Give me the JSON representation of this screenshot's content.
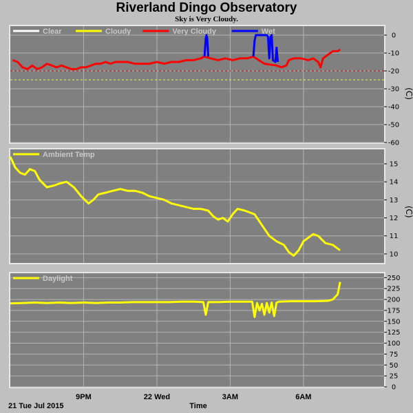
{
  "title": "Riverland Dingo Observatory",
  "subtitle": "Sky is Very Cloudy.",
  "x_axis": {
    "label": "Time",
    "start_label": "21 Tue Jul 2015",
    "range_hours": [
      18.0,
      33.3
    ],
    "ticks": [
      {
        "t": 21,
        "label": "9PM"
      },
      {
        "t": 24,
        "label": "22 Wed"
      },
      {
        "t": 27,
        "label": "3AM"
      },
      {
        "t": 30,
        "label": "6AM"
      }
    ]
  },
  "colors": {
    "plot_bg": "#808080",
    "grid": "#b4b4b4",
    "clear": "#ffffff",
    "cloudy": "#ffff00",
    "very_cloudy": "#ff0000",
    "wet": "#0000ff",
    "ambient": "#ffff00",
    "daylight": "#ffff00"
  },
  "chart_data": [
    {
      "type": "line",
      "ylabel": "(C)",
      "ylim": [
        -60,
        5
      ],
      "yticks": [
        0,
        -10,
        -20,
        -30,
        -40,
        -50,
        -60
      ],
      "legend": [
        "Clear",
        "Cloudy",
        "Very Cloudy",
        "Wet"
      ],
      "thresholds": [
        {
          "name": "Very Cloudy",
          "value": -20
        },
        {
          "name": "Cloudy",
          "value": -25
        }
      ],
      "series": [
        {
          "name": "Very Cloudy",
          "points": [
            [
              18.1,
              -14
            ],
            [
              18.3,
              -15
            ],
            [
              18.5,
              -18
            ],
            [
              18.7,
              -19
            ],
            [
              18.9,
              -17
            ],
            [
              19.1,
              -19
            ],
            [
              19.3,
              -18
            ],
            [
              19.5,
              -16
            ],
            [
              19.7,
              -17
            ],
            [
              19.9,
              -18
            ],
            [
              20.1,
              -17
            ],
            [
              20.3,
              -18
            ],
            [
              20.5,
              -19
            ],
            [
              20.7,
              -19
            ],
            [
              20.9,
              -18
            ],
            [
              21.1,
              -18
            ],
            [
              21.3,
              -17
            ],
            [
              21.5,
              -16
            ],
            [
              21.7,
              -16
            ],
            [
              21.9,
              -15
            ],
            [
              22.1,
              -16
            ],
            [
              22.3,
              -15
            ],
            [
              22.5,
              -15
            ],
            [
              22.8,
              -15
            ],
            [
              23.1,
              -16
            ],
            [
              23.4,
              -16
            ],
            [
              23.7,
              -16
            ],
            [
              24.0,
              -15
            ],
            [
              24.3,
              -16
            ],
            [
              24.6,
              -15
            ],
            [
              24.9,
              -15
            ],
            [
              25.2,
              -14
            ],
            [
              25.5,
              -14
            ],
            [
              25.8,
              -13
            ],
            [
              25.93,
              -12
            ],
            [
              26.2,
              -13
            ],
            [
              26.5,
              -14
            ],
            [
              26.8,
              -13
            ],
            [
              27.1,
              -14
            ],
            [
              27.4,
              -13
            ],
            [
              27.7,
              -13
            ],
            [
              27.95,
              -12
            ],
            [
              28.4,
              -16
            ],
            [
              28.9,
              -17
            ],
            [
              29.1,
              -18
            ],
            [
              29.3,
              -17
            ],
            [
              29.4,
              -14
            ],
            [
              29.6,
              -13
            ],
            [
              29.9,
              -13
            ],
            [
              30.2,
              -14
            ],
            [
              30.4,
              -13
            ],
            [
              30.6,
              -15
            ],
            [
              30.7,
              -18
            ],
            [
              30.8,
              -13
            ],
            [
              31.0,
              -11
            ],
            [
              31.2,
              -9
            ],
            [
              31.4,
              -9
            ],
            [
              31.5,
              -8
            ]
          ]
        },
        {
          "name": "Wet",
          "segments": [
            [
              [
                25.95,
                -12
              ],
              [
                26.0,
                -2
              ],
              [
                26.03,
                0
              ],
              [
                26.06,
                -2
              ],
              [
                26.1,
                -12
              ]
            ],
            [
              [
                27.95,
                -12
              ],
              [
                28.0,
                -3
              ],
              [
                28.05,
                0
              ],
              [
                28.45,
                0
              ],
              [
                28.5,
                0
              ],
              [
                28.55,
                -1
              ],
              [
                28.6,
                -13
              ],
              [
                28.65,
                -1
              ],
              [
                28.7,
                0
              ],
              [
                28.75,
                -14
              ],
              [
                28.85,
                -15
              ],
              [
                28.9,
                -7
              ],
              [
                28.95,
                -15
              ]
            ]
          ]
        }
      ]
    },
    {
      "type": "line",
      "ylabel": "(C)",
      "ylim": [
        9.5,
        15.8
      ],
      "yticks": [
        10,
        11,
        12,
        13,
        14,
        15
      ],
      "legend": [
        "Ambient Temp"
      ],
      "series": [
        {
          "name": "Ambient Temp",
          "points": [
            [
              18.0,
              15.4
            ],
            [
              18.2,
              14.8
            ],
            [
              18.4,
              14.5
            ],
            [
              18.6,
              14.4
            ],
            [
              18.8,
              14.7
            ],
            [
              19.0,
              14.6
            ],
            [
              19.2,
              14.1
            ],
            [
              19.5,
              13.7
            ],
            [
              19.8,
              13.8
            ],
            [
              20.0,
              13.9
            ],
            [
              20.3,
              14.0
            ],
            [
              20.6,
              13.7
            ],
            [
              20.9,
              13.2
            ],
            [
              21.2,
              12.8
            ],
            [
              21.4,
              13.0
            ],
            [
              21.6,
              13.3
            ],
            [
              21.9,
              13.4
            ],
            [
              22.2,
              13.5
            ],
            [
              22.5,
              13.6
            ],
            [
              22.8,
              13.5
            ],
            [
              23.1,
              13.5
            ],
            [
              23.4,
              13.4
            ],
            [
              23.7,
              13.2
            ],
            [
              24.0,
              13.1
            ],
            [
              24.3,
              13.0
            ],
            [
              24.6,
              12.8
            ],
            [
              24.9,
              12.7
            ],
            [
              25.2,
              12.6
            ],
            [
              25.5,
              12.5
            ],
            [
              25.8,
              12.5
            ],
            [
              26.1,
              12.4
            ],
            [
              26.3,
              12.1
            ],
            [
              26.5,
              11.9
            ],
            [
              26.7,
              12.0
            ],
            [
              26.9,
              11.8
            ],
            [
              27.1,
              12.2
            ],
            [
              27.3,
              12.5
            ],
            [
              27.6,
              12.4
            ],
            [
              28.0,
              12.2
            ],
            [
              28.3,
              11.6
            ],
            [
              28.6,
              11.0
            ],
            [
              28.9,
              10.7
            ],
            [
              29.2,
              10.5
            ],
            [
              29.4,
              10.1
            ],
            [
              29.6,
              9.9
            ],
            [
              29.8,
              10.2
            ],
            [
              30.0,
              10.7
            ],
            [
              30.2,
              10.9
            ],
            [
              30.4,
              11.1
            ],
            [
              30.6,
              11.0
            ],
            [
              30.9,
              10.6
            ],
            [
              31.2,
              10.5
            ],
            [
              31.5,
              10.2
            ]
          ]
        }
      ]
    },
    {
      "type": "line",
      "ylabel": "",
      "ylim": [
        0,
        260
      ],
      "yticks": [
        0,
        25,
        50,
        75,
        100,
        125,
        150,
        175,
        200,
        225,
        250
      ],
      "legend": [
        "Daylight"
      ],
      "series": [
        {
          "name": "Daylight",
          "points": [
            [
              18.0,
              191
            ],
            [
              18.5,
              192
            ],
            [
              19.0,
              193
            ],
            [
              19.5,
              192
            ],
            [
              20.0,
              193
            ],
            [
              20.5,
              192
            ],
            [
              21.0,
              193
            ],
            [
              21.5,
              192
            ],
            [
              22.0,
              193
            ],
            [
              22.5,
              193
            ],
            [
              23.0,
              194
            ],
            [
              23.5,
              194
            ],
            [
              24.0,
              194
            ],
            [
              24.5,
              194
            ],
            [
              25.0,
              195
            ],
            [
              25.5,
              195
            ],
            [
              25.9,
              194
            ],
            [
              26.0,
              165
            ],
            [
              26.1,
              194
            ],
            [
              26.5,
              194
            ],
            [
              27.0,
              195
            ],
            [
              27.5,
              195
            ],
            [
              27.9,
              195
            ],
            [
              28.0,
              160
            ],
            [
              28.1,
              192
            ],
            [
              28.2,
              175
            ],
            [
              28.3,
              190
            ],
            [
              28.4,
              165
            ],
            [
              28.5,
              192
            ],
            [
              28.6,
              170
            ],
            [
              28.7,
              193
            ],
            [
              28.8,
              162
            ],
            [
              28.9,
              193
            ],
            [
              29.0,
              195
            ],
            [
              29.5,
              196
            ],
            [
              30.0,
              196
            ],
            [
              30.5,
              196
            ],
            [
              31.0,
              197
            ],
            [
              31.2,
              200
            ],
            [
              31.4,
              212
            ],
            [
              31.5,
              240
            ]
          ]
        }
      ]
    }
  ]
}
